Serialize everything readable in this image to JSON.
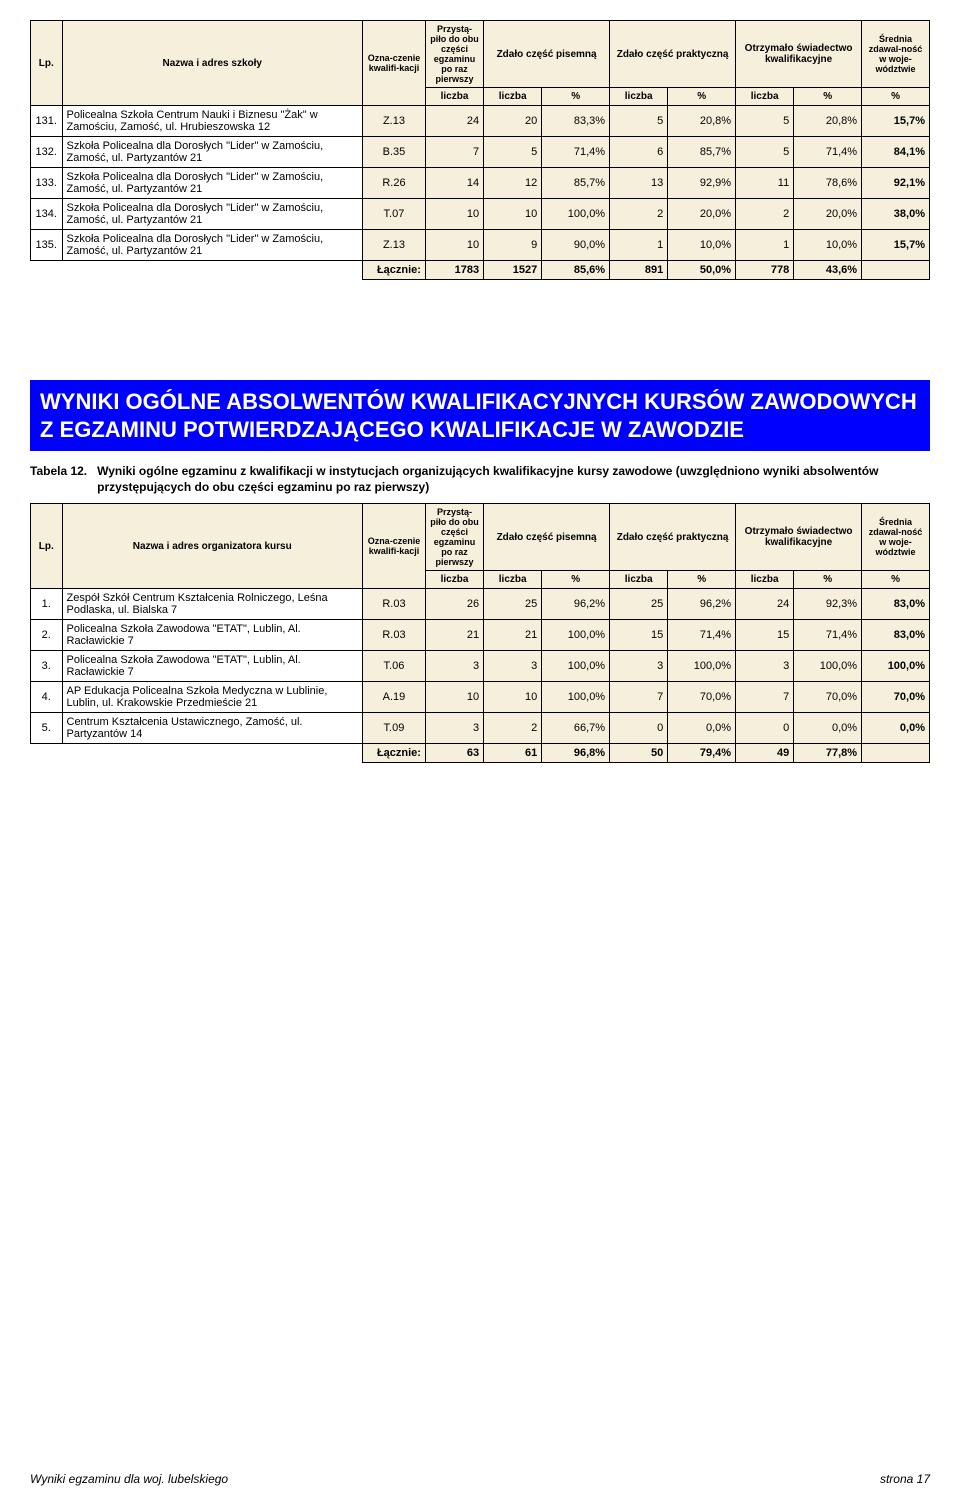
{
  "tables": {
    "table1": {
      "headers": {
        "lp": "Lp.",
        "name": "Nazwa i adres szkoły",
        "code": "Ozna-czenie kwalifi-kacji",
        "attended": "Przystą-piło do obu części egzaminu po raz pierwszy",
        "written": "Zdało część pisemną",
        "practical": "Zdało część praktyczną",
        "cert": "Otrzymało świadectwo kwalifikacyjne",
        "avg": "Średnia zdawal-ność w woje-wództwie",
        "sub_liczba": "liczba",
        "sub_pct": "%"
      },
      "rows": [
        {
          "lp": "131.",
          "name": "Policealna Szkoła Centrum Nauki i Biznesu \"Żak\" w Zamościu, Zamość, ul. Hrubieszowska 12",
          "code": "Z.13",
          "attended": "24",
          "written_n": "20",
          "written_p": "83,3%",
          "practical_n": "5",
          "practical_p": "20,8%",
          "cert_n": "5",
          "cert_p": "20,8%",
          "avg": "15,7%"
        },
        {
          "lp": "132.",
          "name": "Szkoła Policealna dla Dorosłych \"Lider\" w Zamościu, Zamość, ul. Partyzantów 21",
          "code": "B.35",
          "attended": "7",
          "written_n": "5",
          "written_p": "71,4%",
          "practical_n": "6",
          "practical_p": "85,7%",
          "cert_n": "5",
          "cert_p": "71,4%",
          "avg": "84,1%"
        },
        {
          "lp": "133.",
          "name": "Szkoła Policealna dla Dorosłych \"Lider\" w Zamościu, Zamość, ul. Partyzantów 21",
          "code": "R.26",
          "attended": "14",
          "written_n": "12",
          "written_p": "85,7%",
          "practical_n": "13",
          "practical_p": "92,9%",
          "cert_n": "11",
          "cert_p": "78,6%",
          "avg": "92,1%"
        },
        {
          "lp": "134.",
          "name": "Szkoła Policealna dla Dorosłych \"Lider\" w Zamościu, Zamość, ul. Partyzantów 21",
          "code": "T.07",
          "attended": "10",
          "written_n": "10",
          "written_p": "100,0%",
          "practical_n": "2",
          "practical_p": "20,0%",
          "cert_n": "2",
          "cert_p": "20,0%",
          "avg": "38,0%"
        },
        {
          "lp": "135.",
          "name": "Szkoła Policealna dla Dorosłych \"Lider\" w Zamościu, Zamość, ul. Partyzantów 21",
          "code": "Z.13",
          "attended": "10",
          "written_n": "9",
          "written_p": "90,0%",
          "practical_n": "1",
          "practical_p": "10,0%",
          "cert_n": "1",
          "cert_p": "10,0%",
          "avg": "15,7%"
        }
      ],
      "sum": {
        "label": "Łącznie:",
        "attended": "1783",
        "written_n": "1527",
        "written_p": "85,6%",
        "practical_n": "891",
        "practical_p": "50,0%",
        "cert_n": "778",
        "cert_p": "43,6%",
        "avg": ""
      }
    },
    "table2": {
      "headers": {
        "lp": "Lp.",
        "name": "Nazwa i adres organizatora kursu",
        "code": "Ozna-czenie kwalifi-kacji",
        "attended": "Przystą-piło do obu części egzaminu po raz pierwszy",
        "written": "Zdało część pisemną",
        "practical": "Zdało część praktyczną",
        "cert": "Otrzymało świadectwo kwalifikacyjne",
        "avg": "Średnia zdawal-ność w woje-wództwie",
        "sub_liczba": "liczba",
        "sub_pct": "%"
      },
      "rows": [
        {
          "lp": "1.",
          "name": "Zespół Szkół Centrum Kształcenia Rolniczego, Leśna Podlaska, ul. Bialska 7",
          "code": "R.03",
          "attended": "26",
          "written_n": "25",
          "written_p": "96,2%",
          "practical_n": "25",
          "practical_p": "96,2%",
          "cert_n": "24",
          "cert_p": "92,3%",
          "avg": "83,0%"
        },
        {
          "lp": "2.",
          "name": "Policealna Szkoła Zawodowa \"ETAT\", Lublin, Al. Racławickie 7",
          "code": "R.03",
          "attended": "21",
          "written_n": "21",
          "written_p": "100,0%",
          "practical_n": "15",
          "practical_p": "71,4%",
          "cert_n": "15",
          "cert_p": "71,4%",
          "avg": "83,0%"
        },
        {
          "lp": "3.",
          "name": "Policealna Szkoła Zawodowa \"ETAT\", Lublin, Al. Racławickie 7",
          "code": "T.06",
          "attended": "3",
          "written_n": "3",
          "written_p": "100,0%",
          "practical_n": "3",
          "practical_p": "100,0%",
          "cert_n": "3",
          "cert_p": "100,0%",
          "avg": "100,0%"
        },
        {
          "lp": "4.",
          "name": "AP Edukacja Policealna Szkoła Medyczna w Lublinie, Lublin, ul. Krakowskie Przedmieście 21",
          "code": "A.19",
          "attended": "10",
          "written_n": "10",
          "written_p": "100,0%",
          "practical_n": "7",
          "practical_p": "70,0%",
          "cert_n": "7",
          "cert_p": "70,0%",
          "avg": "70,0%"
        },
        {
          "lp": "5.",
          "name": "Centrum Kształcenia Ustawicznego, Zamość, ul. Partyzantów 14",
          "code": "T.09",
          "attended": "3",
          "written_n": "2",
          "written_p": "66,7%",
          "practical_n": "0",
          "practical_p": "0,0%",
          "cert_n": "0",
          "cert_p": "0,0%",
          "avg": "0,0%"
        }
      ],
      "sum": {
        "label": "Łącznie:",
        "attended": "63",
        "written_n": "61",
        "written_p": "96,8%",
        "practical_n": "50",
        "practical_p": "79,4%",
        "cert_n": "49",
        "cert_p": "77,8%",
        "avg": ""
      }
    }
  },
  "section_title": "WYNIKI OGÓLNE ABSOLWENTÓW KWALIFIKACYJNYCH KURSÓW ZAWODOWYCH Z EGZAMINU POTWIERDZAJĄCEGO KWALIFIKACJE W ZAWODZIE",
  "caption": {
    "label": "Tabela 12.",
    "desc": "Wyniki ogólne egzaminu z kwalifikacji w instytucjach organizujących kwalifikacyjne kursy zawodowe (uwzględniono wyniki absolwentów przystępujących do obu części egzaminu po raz pierwszy)"
  },
  "footer": {
    "left": "Wyniki egzaminu dla woj. lubelskiego",
    "right": "strona 17"
  },
  "style": {
    "header_bg": "#f5efdb",
    "data_bg": "#f5efdb",
    "section_bg": "#0000ff",
    "section_fg": "#ffffff"
  }
}
